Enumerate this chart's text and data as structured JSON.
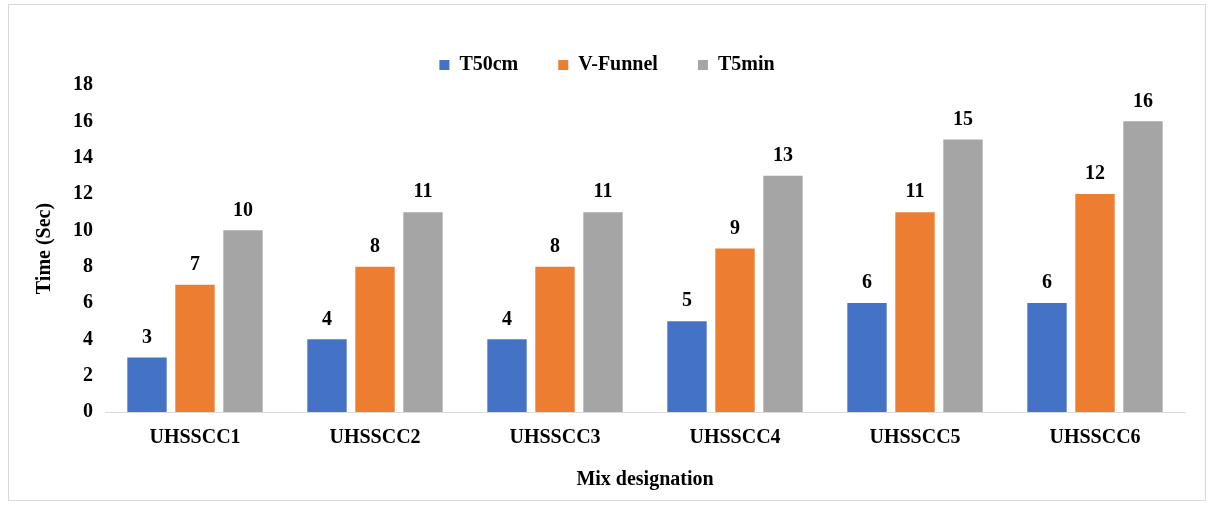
{
  "chart_data": {
    "type": "bar",
    "xlabel": "Mix designation",
    "ylabel": "Time (Sec)",
    "categories": [
      "UHSSCC1",
      "UHSSCC2",
      "UHSSCC3",
      "UHSSCC4",
      "UHSSCC5",
      "UHSSCC6"
    ],
    "series": [
      {
        "name": "T50cm",
        "color": "#4472c4",
        "values": [
          3,
          4,
          4,
          5,
          6,
          6
        ]
      },
      {
        "name": "V-Funnel",
        "color": "#ed7d31",
        "values": [
          7,
          8,
          8,
          9,
          11,
          12
        ]
      },
      {
        "name": "T5min",
        "color": "#a5a5a5",
        "values": [
          10,
          11,
          11,
          13,
          15,
          16
        ]
      }
    ],
    "ylim": [
      0,
      18
    ],
    "yticks": [
      0,
      2,
      4,
      6,
      8,
      10,
      12,
      14,
      16,
      18
    ],
    "grid": false,
    "legend": "top",
    "data_labels": true
  }
}
